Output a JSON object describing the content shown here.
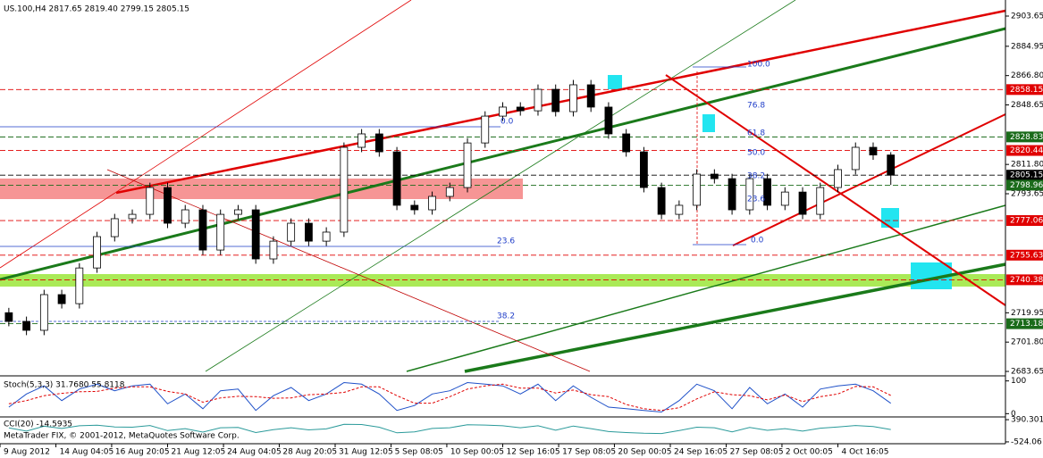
{
  "chart_data": [
    {
      "type": "candlestick",
      "title": "US.100,H4  2817.65 2819.40 2799.15 2805.15",
      "xlim": [
        -0.5,
        56.5
      ],
      "xticks": [
        {
          "value": -0.5,
          "label": "9 Aug 2012"
        },
        {
          "value": 2.67,
          "label": "14 Aug 04:05"
        },
        {
          "value": 5.83,
          "label": "16 Aug 20:05"
        },
        {
          "value": 9,
          "label": "21 Aug 12:05"
        },
        {
          "value": 12.17,
          "label": "24 Aug 04:05"
        },
        {
          "value": 15.33,
          "label": "28 Aug 20:05"
        },
        {
          "value": 18.5,
          "label": "31 Aug 12:05"
        },
        {
          "value": 21.67,
          "label": "5 Sep 08:05"
        },
        {
          "value": 24.83,
          "label": "10 Sep 00:05"
        },
        {
          "value": 28,
          "label": "12 Sep 16:05"
        },
        {
          "value": 31.17,
          "label": "17 Sep 08:05"
        },
        {
          "value": 34.33,
          "label": "20 Sep 00:05"
        },
        {
          "value": 37.5,
          "label": "24 Sep 16:05"
        },
        {
          "value": 40.67,
          "label": "27 Sep 08:05"
        },
        {
          "value": 43.83,
          "label": "2 Oct 00:05"
        },
        {
          "value": 47,
          "label": "4 Oct 16:05"
        }
      ],
      "ylim": [
        2680.9,
        2913.6
      ],
      "yticks": [
        2903.65,
        2884.95,
        {
          "value": 2866.8,
          "label": "2866.80"
        },
        2848.65,
        {
          "value": 2811.8,
          "label": "2811.80"
        },
        2793.65,
        2719.95,
        {
          "value": 2701.8,
          "label": "2701.80"
        },
        2683.65
      ],
      "open": [
        2720.0,
        2714.6,
        2709.1,
        2731.2,
        2725.6,
        2747.7,
        2767.1,
        2778.2,
        2780.9,
        2797.5,
        2775.4,
        2783.7,
        2758.8,
        2780.9,
        2783.7,
        2753.3,
        2764.3,
        2775.4,
        2764.3,
        2769.9,
        2822.4,
        2830.7,
        2819.6,
        2786.5,
        2783.7,
        2792.0,
        2797.5,
        2825.1,
        2841.7,
        2847.3,
        2845.0,
        2858.3,
        2844.5,
        2861.1,
        2847.3,
        2830.7,
        2819.6,
        2797.5,
        2780.9,
        2786.5,
        2805.8,
        2803.0,
        2783.7,
        2803.0,
        2786.5,
        2794.7,
        2780.9,
        2797.5,
        2808.6,
        2822.4,
        2817.65
      ],
      "high": [
        2723.0,
        2717.6,
        2734.2,
        2734.2,
        2750.7,
        2770.1,
        2781.2,
        2783.9,
        2800.5,
        2800.5,
        2786.7,
        2786.7,
        2783.9,
        2786.7,
        2786.7,
        2767.3,
        2778.4,
        2778.4,
        2772.9,
        2825.4,
        2833.7,
        2833.7,
        2822.6,
        2789.5,
        2795.0,
        2800.5,
        2828.1,
        2844.7,
        2850.3,
        2850.3,
        2861.3,
        2861.3,
        2864.1,
        2864.1,
        2850.3,
        2833.7,
        2822.6,
        2800.5,
        2789.5,
        2808.8,
        2808.8,
        2806.0,
        2806.0,
        2806.0,
        2797.7,
        2797.7,
        2800.5,
        2811.6,
        2825.4,
        2825.4,
        2819.4
      ],
      "low": [
        2711.6,
        2706.1,
        2706.1,
        2722.6,
        2722.6,
        2744.7,
        2764.1,
        2775.2,
        2777.9,
        2772.4,
        2772.4,
        2755.8,
        2755.8,
        2777.9,
        2750.3,
        2750.3,
        2761.3,
        2761.3,
        2761.3,
        2766.9,
        2819.4,
        2816.6,
        2783.5,
        2780.7,
        2780.7,
        2789.0,
        2794.5,
        2822.1,
        2838.7,
        2842.0,
        2842.0,
        2841.5,
        2841.5,
        2844.3,
        2827.7,
        2816.6,
        2794.5,
        2777.9,
        2777.9,
        2783.5,
        2800.0,
        2780.7,
        2780.7,
        2783.5,
        2783.5,
        2777.9,
        2777.9,
        2794.5,
        2805.6,
        2814.65,
        2799.15
      ],
      "close": [
        2714.6,
        2709.1,
        2731.2,
        2725.6,
        2747.7,
        2767.1,
        2778.2,
        2780.9,
        2797.5,
        2775.4,
        2783.7,
        2758.8,
        2780.9,
        2783.7,
        2753.3,
        2764.3,
        2775.4,
        2764.3,
        2769.9,
        2822.4,
        2830.7,
        2819.6,
        2786.5,
        2783.7,
        2792.0,
        2797.5,
        2825.1,
        2841.7,
        2847.3,
        2845.0,
        2858.3,
        2844.5,
        2861.1,
        2847.3,
        2830.7,
        2819.6,
        2797.5,
        2780.9,
        2786.5,
        2805.8,
        2803.0,
        2783.7,
        2803.0,
        2786.5,
        2794.7,
        2780.9,
        2797.5,
        2808.6,
        2822.4,
        2817.65,
        2805.15
      ],
      "levels": [
        {
          "value": 2858.15,
          "color": "#e00000"
        },
        {
          "value": 2828.83,
          "color": "#1a6b1a"
        },
        {
          "value": 2820.44,
          "color": "#e00000"
        },
        {
          "value": 2805.15,
          "color": "#000000"
        },
        {
          "value": 2798.96,
          "color": "#1a6b1a"
        },
        {
          "value": 2777.06,
          "color": "#e00000"
        },
        {
          "value": 2755.63,
          "color": "#e00000"
        },
        {
          "value": 2740.38,
          "color": "#e00000"
        },
        {
          "value": 2713.18,
          "color": "#1a6b1a"
        }
      ],
      "annotations": [
        "0.0",
        "23.6",
        "38.2",
        "100.0",
        "76.8",
        "61.8",
        "50.0",
        "38.2",
        "23.6",
        "0.0"
      ]
    },
    {
      "type": "line",
      "title": "Stoch(5,3,3) 31.7680 55.8118",
      "ylim": [
        -10,
        110
      ],
      "yticks": [
        100,
        0
      ],
      "series": [
        {
          "color": "#1e50c8",
          "values": [
            20,
            60,
            85,
            40,
            75,
            90,
            70,
            85,
            90,
            30,
            60,
            15,
            70,
            75,
            10,
            55,
            80,
            40,
            60,
            95,
            90,
            60,
            10,
            25,
            60,
            70,
            95,
            90,
            85,
            60,
            90,
            40,
            85,
            50,
            20,
            15,
            10,
            5,
            40,
            90,
            70,
            15,
            80,
            30,
            60,
            20,
            75,
            85,
            90,
            70,
            31.768
          ]
        },
        {
          "color": "#e00000",
          "values": [
            30,
            40,
            55,
            62,
            67,
            68,
            78,
            82,
            82,
            68,
            60,
            35,
            48,
            53,
            52,
            47,
            48,
            58,
            60,
            65,
            82,
            82,
            55,
            32,
            32,
            52,
            75,
            85,
            90,
            78,
            78,
            63,
            72,
            58,
            52,
            28,
            15,
            10,
            18,
            45,
            67,
            58,
            55,
            42,
            57,
            37,
            52,
            60,
            83,
            82,
            55.8118
          ]
        }
      ]
    },
    {
      "type": "line",
      "title": "CCI(20) -14.5935",
      "ylim": [
        -600,
        430
      ],
      "yticks": [
        390.301,
        -524.06
      ],
      "series": [
        {
          "color": "#2a9a9a",
          "values": [
            50,
            -80,
            120,
            30,
            140,
            160,
            90,
            80,
            150,
            -60,
            20,
            -120,
            60,
            70,
            -140,
            -20,
            60,
            -30,
            10,
            200,
            190,
            80,
            -150,
            -110,
            30,
            60,
            180,
            170,
            140,
            60,
            140,
            -40,
            130,
            20,
            -100,
            -140,
            -170,
            -180,
            -60,
            80,
            60,
            -110,
            70,
            -50,
            20,
            -80,
            40,
            90,
            150,
            110,
            -14.5935
          ]
        }
      ]
    }
  ],
  "footer": "MetaTrader FIX, © 2001-2012, MetaQuotes Software Corp."
}
